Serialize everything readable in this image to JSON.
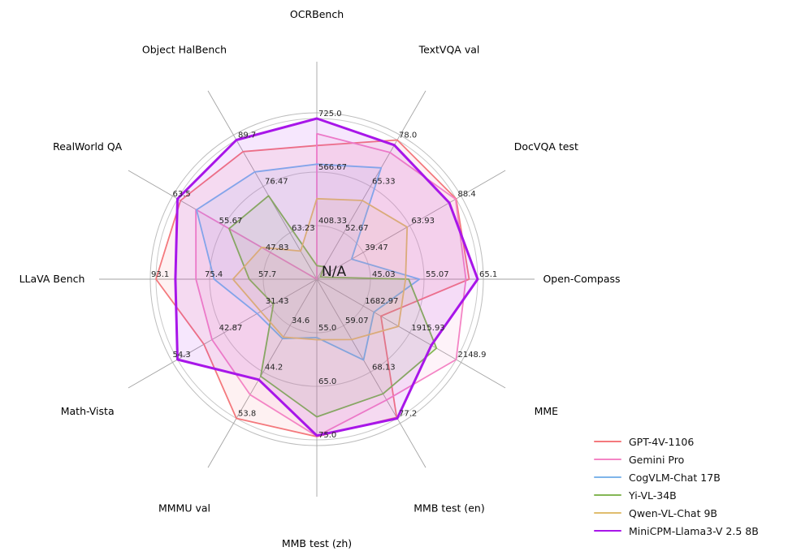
{
  "chart_data": {
    "type": "radar",
    "title": "",
    "center_label": "N/A",
    "grid": true,
    "legend_position": "lower right",
    "axes": [
      {
        "label": "OCRBench",
        "min": 250,
        "max": 725,
        "tick_labels": [
          "408.33",
          "566.67",
          "725.0"
        ]
      },
      {
        "label": "TextVQA val",
        "min": 40,
        "max": 78.0,
        "tick_labels": [
          "52.67",
          "65.33",
          "78.0"
        ]
      },
      {
        "label": "DocVQA test",
        "min": 15,
        "max": 88.4,
        "tick_labels": [
          "39.47",
          "63.93",
          "88.4"
        ]
      },
      {
        "label": "Open-Compass",
        "min": 35,
        "max": 65.1,
        "tick_labels": [
          "45.03",
          "55.07",
          "65.1"
        ]
      },
      {
        "label": "MME",
        "min": 1450,
        "max": 2148.9,
        "tick_labels": [
          "1682.97",
          "1915.93",
          "2148.9"
        ]
      },
      {
        "label": "MMB test (en)",
        "min": 50,
        "max": 77.2,
        "tick_labels": [
          "59.07",
          "68.13",
          "77.2"
        ]
      },
      {
        "label": "MMB test (zh)",
        "min": 45,
        "max": 75.0,
        "tick_labels": [
          "55.0",
          "65.0",
          "75.0"
        ]
      },
      {
        "label": "MMMU val",
        "min": 25,
        "max": 53.8,
        "tick_labels": [
          "34.6",
          "44.2",
          "53.8"
        ]
      },
      {
        "label": "Math-Vista",
        "min": 20,
        "max": 54.3,
        "tick_labels": [
          "31.43",
          "42.87",
          "54.3"
        ]
      },
      {
        "label": "LLaVA Bench",
        "min": 40,
        "max": 93.1,
        "tick_labels": [
          "57.7",
          "75.4",
          "93.1"
        ]
      },
      {
        "label": "RealWorld QA",
        "min": 40,
        "max": 63.5,
        "tick_labels": [
          "47.83",
          "55.67",
          "63.5"
        ]
      },
      {
        "label": "Object HalBench",
        "min": 50,
        "max": 89.7,
        "tick_labels": [
          "63.23",
          "76.47",
          "89.7"
        ]
      }
    ],
    "series": [
      {
        "name": "GPT-4V-1106",
        "color": "#f4797d",
        "line_width": 1.8,
        "values": [
          645,
          78.0,
          88.4,
          63.5,
          1771.5,
          77.0,
          74.4,
          53.8,
          47.8,
          93.1,
          63.0,
          86.4
        ]
      },
      {
        "name": "Gemini Pro",
        "color": "#f485c5",
        "line_width": 1.8,
        "values": [
          680,
          74.6,
          88.1,
          62.9,
          2148.9,
          73.6,
          74.3,
          48.9,
          45.8,
          79.9,
          60.4,
          null
        ]
      },
      {
        "name": "CogVLM-Chat 17B",
        "color": "#7fb5ea",
        "line_width": 1.8,
        "values": [
          590,
          70.4,
          33.3,
          54.2,
          1736.6,
          65.8,
          55.9,
          37.3,
          34.7,
          73.9,
          60.3,
          80.6
        ]
      },
      {
        "name": "Yi-VL-34B",
        "color": "#84b755",
        "line_width": 1.8,
        "values": [
          290,
          43.4,
          16.9,
          52.2,
          2050.2,
          72.4,
          70.7,
          45.1,
          30.7,
          62.3,
          54.8,
          73.8
        ]
      },
      {
        "name": "Qwen-VL-Chat 9B",
        "color": "#e0bd6e",
        "line_width": 1.8,
        "values": [
          488,
          61.5,
          62.6,
          51.6,
          1860.0,
          61.8,
          56.3,
          37.0,
          33.8,
          67.7,
          49.3,
          58.0
        ]
      },
      {
        "name": "MiniCPM-Llama3-V 2.5 8B",
        "color": "#a816e9",
        "line_width": 3.0,
        "values": [
          725,
          76.6,
          84.8,
          65.1,
          2024.6,
          77.2,
          74.2,
          45.8,
          54.3,
          86.7,
          63.5,
          89.7
        ]
      }
    ],
    "style": {
      "fill_opacity": 0.1,
      "ring_color": "#c9c9c9",
      "boundary_color": "#bdbdbd",
      "spoke_color": "#a3a3a3",
      "tick_color": "#262626",
      "axis_label_color": "#000000"
    }
  }
}
